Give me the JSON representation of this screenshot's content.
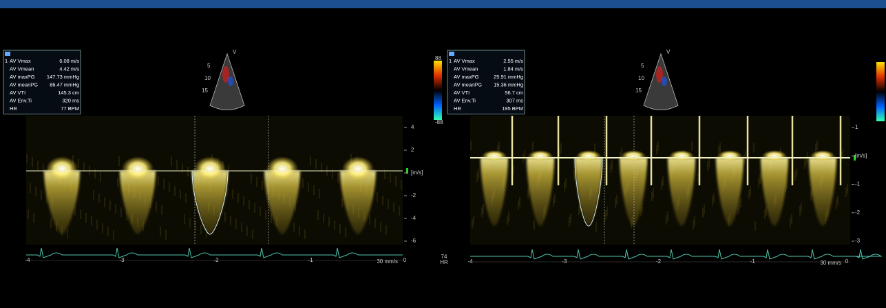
{
  "panels": [
    {
      "measurement_marker": "1",
      "measurements": [
        {
          "label": "AV Vmax",
          "value": "6.08 m/s"
        },
        {
          "label": "AV Vmean",
          "value": "4.42 m/s"
        },
        {
          "label": "AV maxPG",
          "value": "147.73 mmHg"
        },
        {
          "label": "AV meanPG",
          "value": "86.47 mmHg"
        },
        {
          "label": "AV VTI",
          "value": "145.3 cm"
        },
        {
          "label": "AV Env.Ti",
          "value": "320 ms"
        },
        {
          "label": "HR",
          "value": "77 BPM"
        }
      ],
      "sector_labels": [
        "V",
        "5",
        "10",
        "15"
      ],
      "colorbar_labels": [
        "88",
        "-88"
      ],
      "velocity_scale": [
        "4",
        "2",
        "[m/s]",
        "-2",
        "-4",
        "-6"
      ],
      "time_scale": [
        "-4",
        "-3",
        "-2",
        "-1",
        "0"
      ],
      "sweep_speed": "30 mm/s"
    },
    {
      "measurement_marker": "1",
      "measurements": [
        {
          "label": "AV Vmax",
          "value": "2.55 m/s"
        },
        {
          "label": "AV Vmean",
          "value": "1.84 m/s"
        },
        {
          "label": "AV maxPG",
          "value": "25.91 mmHg"
        },
        {
          "label": "AV meanPG",
          "value": "15.36 mmHg"
        },
        {
          "label": "AV VTI",
          "value": "56.7 cm"
        },
        {
          "label": "AV Env.Ti",
          "value": "307 ms"
        },
        {
          "label": "HR",
          "value": "195 BPM"
        }
      ],
      "sector_labels": [
        "V",
        "5",
        "10",
        "15"
      ],
      "velocity_scale": [
        "1",
        "[m/s]",
        "-1",
        "-2",
        "-3"
      ],
      "time_scale": [
        "-4",
        "-3",
        "-2",
        "-1",
        "0"
      ],
      "sweep_speed": "30 mm/s"
    }
  ],
  "hr_readout": {
    "value": "74",
    "label": "HR"
  }
}
